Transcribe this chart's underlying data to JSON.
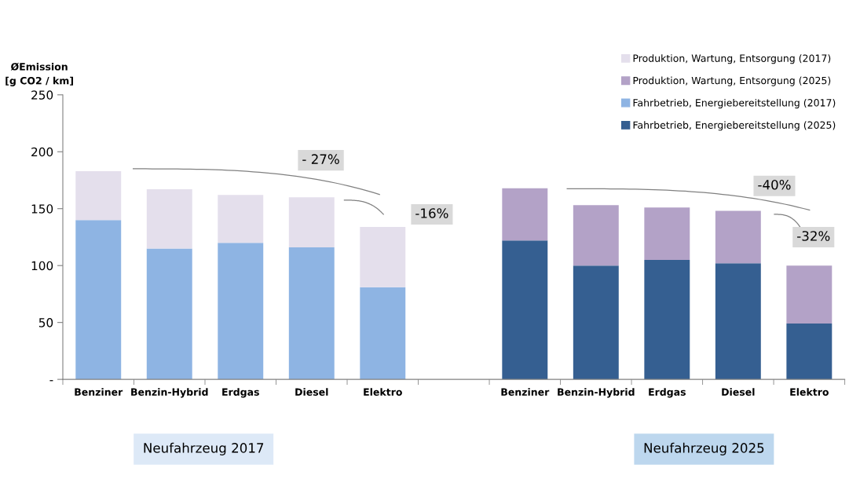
{
  "chart_data": {
    "type": "bar",
    "stacked": true,
    "ylabel": "ØEmission\n[g CO2 / km]",
    "categories": [
      "Benziner",
      "Benzin-Hybrid",
      "Erdgas",
      "Diesel",
      "Elektro",
      null,
      "Benziner",
      "Benzin-Hybrid",
      "Erdgas",
      "Diesel",
      "Elektro"
    ],
    "series": [
      {
        "name": "Fahrbetrieb, Energiebereitstellung (2017)",
        "color": "#8eb4e3",
        "values": [
          140,
          115,
          120,
          116,
          81,
          null,
          null,
          null,
          null,
          null,
          null
        ]
      },
      {
        "name": "Fahrbetrieb, Energiebereitstellung (2025)",
        "color": "#355f91",
        "values": [
          null,
          null,
          null,
          null,
          null,
          null,
          122,
          100,
          105,
          102,
          49
        ]
      },
      {
        "name": "Produktion, Wartung, Entsorgung (2017)",
        "color": "#e4dfec",
        "values": [
          43,
          52,
          42,
          44,
          53,
          null,
          null,
          null,
          null,
          null,
          null
        ]
      },
      {
        "name": "Produktion, Wartung, Entsorgung (2025)",
        "color": "#b3a2c7",
        "values": [
          null,
          null,
          null,
          null,
          null,
          null,
          46,
          53,
          46,
          46,
          51
        ]
      }
    ],
    "ylim": [
      0,
      250
    ],
    "yticks": [
      {
        "value": 0,
        "label": "-"
      },
      50,
      100,
      150,
      200,
      250
    ],
    "grid": false,
    "legend": "top right",
    "annotations": [
      "- 27%",
      "-16%",
      "-40%",
      "-32%",
      "Neufahrzeug 2017",
      "Neufahrzeug 2025"
    ]
  }
}
